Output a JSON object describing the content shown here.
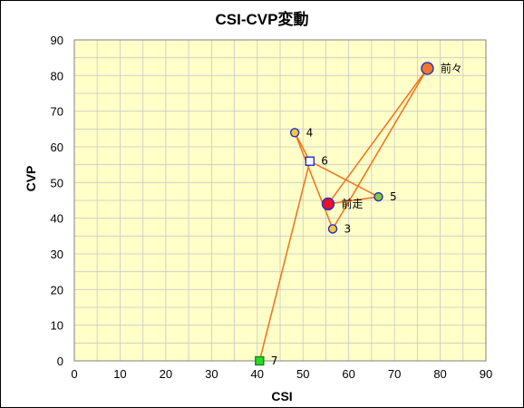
{
  "chart_data": {
    "type": "scatter",
    "title": "CSI-CVP変動",
    "xlabel": "CSI",
    "ylabel": "CVP",
    "xlim": [
      0,
      90
    ],
    "ylim": [
      0,
      90
    ],
    "xticks": [
      0,
      10,
      20,
      30,
      40,
      50,
      60,
      70,
      80,
      90
    ],
    "yticks": [
      0,
      10,
      20,
      30,
      40,
      50,
      60,
      70,
      80,
      90
    ],
    "grid": true,
    "plot_background": "#FFFFC8",
    "grid_color": "#C8C8C8",
    "line_color": "#F07820",
    "path_order": [
      "7",
      "6",
      "4",
      "3",
      "前々",
      "前走",
      "5",
      "6"
    ],
    "points": [
      {
        "label": "前々",
        "x": 77.2,
        "y": 82.0,
        "shape": "circle",
        "fill": "#F07828",
        "stroke": "#2030C8",
        "size": "large"
      },
      {
        "label": "4",
        "x": 48.2,
        "y": 64.0,
        "shape": "circle",
        "fill": "#F5C842",
        "stroke": "#2030C8",
        "size": "small"
      },
      {
        "label": "6",
        "x": 51.5,
        "y": 56.0,
        "shape": "square",
        "fill": "#FFFFFF",
        "stroke": "#2030C8",
        "size": "small"
      },
      {
        "label": "5",
        "x": 66.5,
        "y": 46.0,
        "shape": "circle",
        "fill": "#8CC832",
        "stroke": "#2030C8",
        "size": "small"
      },
      {
        "label": "前走",
        "x": 55.5,
        "y": 44.0,
        "shape": "circle",
        "fill": "#E8102A",
        "stroke": "#2030C8",
        "size": "large"
      },
      {
        "label": "3",
        "x": 56.5,
        "y": 37.0,
        "shape": "circle",
        "fill": "#F5C842",
        "stroke": "#2030C8",
        "size": "small"
      },
      {
        "label": "7",
        "x": 40.5,
        "y": 0.0,
        "shape": "square",
        "fill": "#22DD22",
        "stroke": "#208020",
        "size": "small"
      }
    ]
  }
}
